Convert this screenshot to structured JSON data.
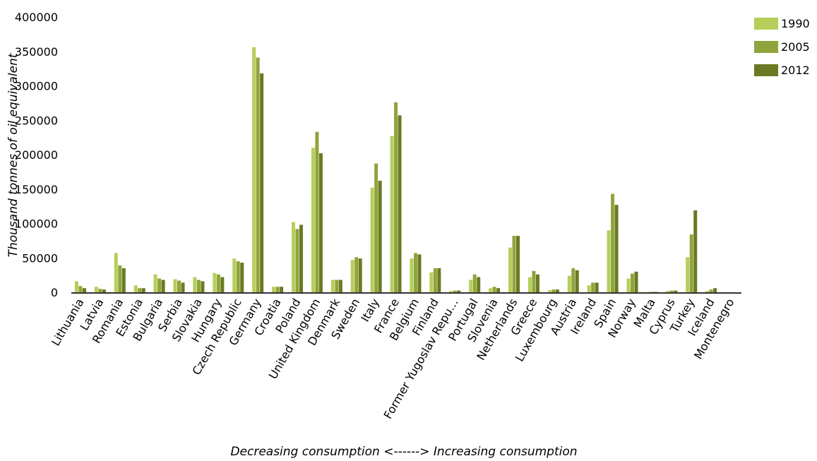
{
  "chart_data": {
    "type": "bar",
    "title": "",
    "ylabel": "Thousand tonnes of oil equivalent",
    "xlabel": "Decreasing consumption <------> Increasing consumption",
    "ylim": [
      0,
      400000
    ],
    "yticks": [
      0,
      50000,
      100000,
      150000,
      200000,
      250000,
      300000,
      350000,
      400000
    ],
    "grid": false,
    "legend_position": "top-right",
    "categories": [
      "Lithuania",
      "Latvia",
      "Romania",
      "Estonia",
      "Bulgaria",
      "Serbia",
      "Slovakia",
      "Hungary",
      "Czech Republic",
      "Germany",
      "Croatia",
      "Poland",
      "United Kingdom",
      "Denmark",
      "Sweden",
      "Italy",
      "France",
      "Belgium",
      "Finland",
      "Former Yugoslav Repu…",
      "Portugal",
      "Slovenia",
      "Netherlands",
      "Greece",
      "Luxembourg",
      "Austria",
      "Ireland",
      "Spain",
      "Norway",
      "Malta",
      "Cyprus",
      "Turkey",
      "Iceland",
      "Montenegro"
    ],
    "series": [
      {
        "name": "1990",
        "color": "#b5cf5a",
        "values": [
          16000,
          8000,
          57000,
          10000,
          26000,
          19000,
          22000,
          28000,
          49000,
          356000,
          8000,
          102000,
          210000,
          18000,
          47000,
          152000,
          227000,
          49000,
          29000,
          2000,
          18000,
          6000,
          65000,
          22000,
          3000,
          24000,
          10000,
          90000,
          20000,
          500,
          2000,
          51000,
          2000,
          0
        ]
      },
      {
        "name": "2005",
        "color": "#8fa43c",
        "values": [
          9000,
          5000,
          39000,
          6000,
          20000,
          17000,
          18000,
          26000,
          45000,
          341000,
          8000,
          92000,
          233000,
          18000,
          51000,
          187000,
          276000,
          57000,
          35000,
          2500,
          26000,
          8000,
          82000,
          31000,
          4000,
          35000,
          14000,
          143000,
          27000,
          600,
          2500,
          84000,
          4000,
          0
        ]
      },
      {
        "name": "2012",
        "color": "#6b7a22",
        "values": [
          6000,
          4000,
          35000,
          6000,
          18000,
          14000,
          16000,
          22000,
          43000,
          318000,
          8000,
          98000,
          202000,
          18000,
          49000,
          162000,
          257000,
          55000,
          35000,
          2500,
          22000,
          6000,
          82000,
          26000,
          4000,
          32000,
          14000,
          127000,
          30000,
          600,
          2500,
          119000,
          6000,
          0
        ]
      }
    ]
  }
}
